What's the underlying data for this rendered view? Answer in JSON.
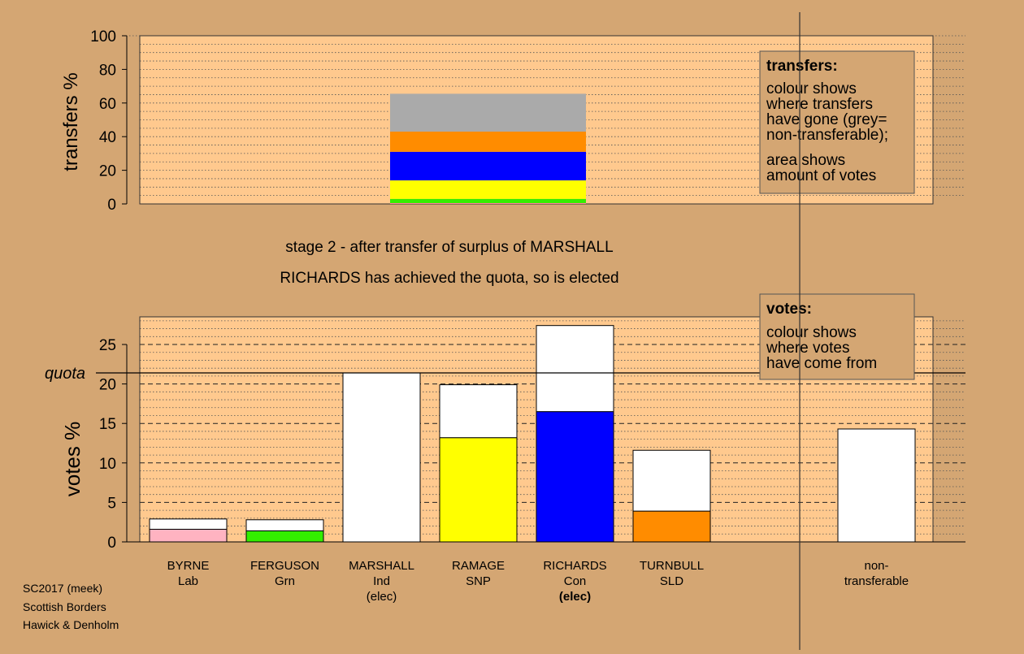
{
  "chart_data": [
    {
      "type": "bar",
      "stacked": true,
      "ylabel": "transfers %",
      "ylim": [
        0,
        100
      ],
      "yticks": [
        0,
        20,
        40,
        60,
        80,
        100
      ],
      "grid": true,
      "category_index": 2,
      "segments": [
        {
          "color": "#ff7fa0",
          "value": 0.5
        },
        {
          "color": "#33ee00",
          "value": 2.5
        },
        {
          "color": "#ffff00",
          "value": 11
        },
        {
          "color": "#0000ff",
          "value": 17
        },
        {
          "color": "#ff8c00",
          "value": 12
        },
        {
          "color": "#aaaaaa",
          "value": 22.5
        }
      ],
      "legend_box": {
        "title": "transfers:",
        "lines": [
          "colour shows",
          "where transfers",
          "have gone (grey=",
          "non-transferable);",
          "area shows",
          "amount of votes"
        ],
        "placement": "top-right"
      }
    },
    {
      "type": "bar",
      "stacked": true,
      "ylabel": "votes %",
      "ylim": [
        0,
        28.5
      ],
      "yticks": [
        0,
        5,
        10,
        15,
        20,
        25
      ],
      "grid": true,
      "quota": 21.4,
      "quota_label": "quota",
      "categories": [
        {
          "name": "BYRNE",
          "party": "Lab",
          "note": "",
          "note_bold": false,
          "segments": [
            {
              "color": "#ffb3c1",
              "value": 1.6
            },
            {
              "color": "#ffffff",
              "value": 1.3
            }
          ]
        },
        {
          "name": "FERGUSON",
          "party": "Grn",
          "note": "",
          "note_bold": false,
          "segments": [
            {
              "color": "#33ee00",
              "value": 1.4
            },
            {
              "color": "#ffffff",
              "value": 1.4
            }
          ]
        },
        {
          "name": "MARSHALL",
          "party": "Ind",
          "note": "(elec)",
          "note_bold": false,
          "segments": [
            {
              "color": "#ffffff",
              "value": 21.4
            }
          ]
        },
        {
          "name": "RAMAGE",
          "party": "SNP",
          "note": "",
          "note_bold": false,
          "segments": [
            {
              "color": "#ffff00",
              "value": 13.2
            },
            {
              "color": "#ffffff",
              "value": 6.7
            }
          ]
        },
        {
          "name": "RICHARDS",
          "party": "Con",
          "note": "(elec)",
          "note_bold": true,
          "segments": [
            {
              "color": "#0000ff",
              "value": 16.5
            },
            {
              "color": "#ffffff",
              "value": 10.9
            }
          ]
        },
        {
          "name": "TURNBULL",
          "party": "SLD",
          "note": "",
          "note_bold": false,
          "segments": [
            {
              "color": "#ff8c00",
              "value": 3.9
            },
            {
              "color": "#ffffff",
              "value": 7.7
            }
          ]
        }
      ],
      "extra_category": {
        "name": "non-",
        "party": "transferable",
        "segments": [
          {
            "color": "#ffffff",
            "value": 14.3
          }
        ]
      },
      "legend_box": {
        "title": "votes:",
        "lines": [
          "colour shows",
          "where votes",
          "have come from"
        ],
        "placement": "top-right"
      }
    }
  ],
  "captions": {
    "stage": "stage 2 - after transfer of surplus of MARSHALL",
    "elected": "RICHARDS has achieved the quota, so is elected"
  },
  "footer": [
    "SC2017 (meek)",
    "Scottish Borders",
    "Hawick & Denholm"
  ],
  "colors": {
    "background": "#d4a673",
    "plot_background": "#ffc98e",
    "grid": "#555555",
    "legend_background": "#d4a673"
  }
}
